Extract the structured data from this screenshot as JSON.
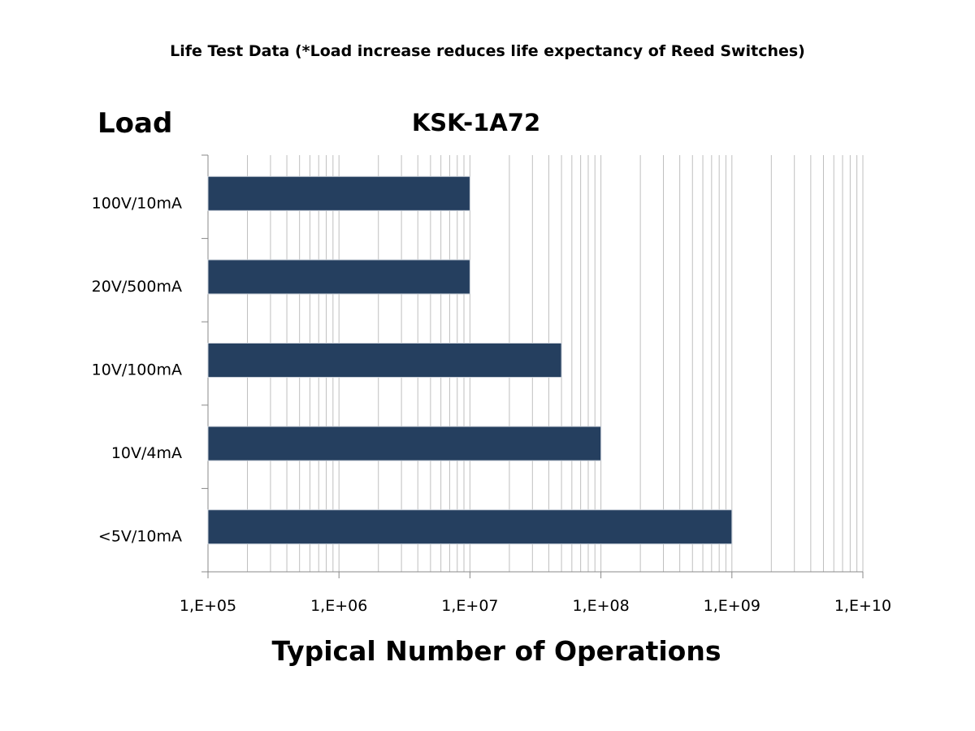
{
  "chart_data": {
    "type": "bar",
    "orientation": "horizontal",
    "title": "Life Test Data (*Load increase reduces life expectancy of Reed Switches)",
    "subtitle": "KSK-1A72",
    "ylabel": "Load",
    "xlabel": "Typical Number of Operations",
    "categories": [
      "100V/10mA",
      "20V/500mA",
      "10V/100mA",
      "10V/4mA",
      "<5V/10mA"
    ],
    "values": [
      10000000,
      10000000,
      50000000,
      100000000,
      1000000000
    ],
    "x_scale": "log",
    "xlim": [
      100000,
      10000000000
    ],
    "x_tick_labels": [
      "1,E+05",
      "1,E+06",
      "1,E+07",
      "1,E+08",
      "1,E+09",
      "1,E+10"
    ],
    "grid": "vertical minor and major",
    "bar_color": "#253f5f",
    "grid_color": "#bfbfbf",
    "legend": "none"
  }
}
